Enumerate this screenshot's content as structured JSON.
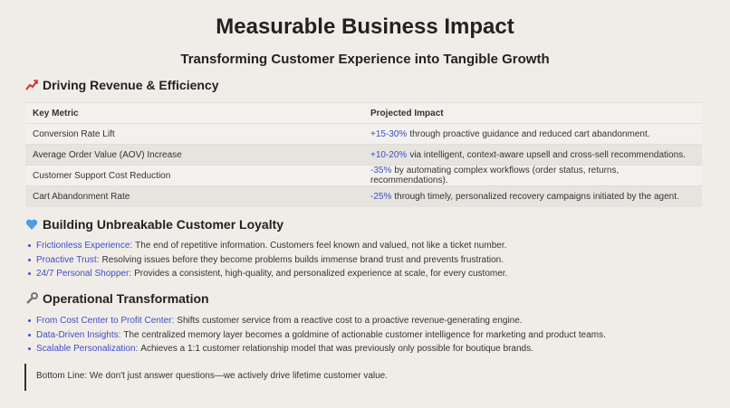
{
  "title": "Measurable Business Impact",
  "subtitle": "Transforming Customer Experience into Tangible Growth",
  "revenue": {
    "heading": "Driving Revenue & Efficiency",
    "table": {
      "headers": [
        "Key Metric",
        "Projected Impact"
      ],
      "rows": [
        {
          "metric": "Conversion Rate Lift",
          "highlight": "+15-30%",
          "text": "through proactive guidance and reduced cart abandonment."
        },
        {
          "metric": "Average Order Value (AOV) Increase",
          "highlight": "+10-20%",
          "text": "via intelligent, context-aware upsell and cross-sell recommendations."
        },
        {
          "metric": "Customer Support Cost Reduction",
          "highlight": "-35%",
          "text": "by automating complex workflows (order status, returns, recommendations)."
        },
        {
          "metric": "Cart Abandonment Rate",
          "highlight": "-25%",
          "text": "through timely, personalized recovery campaigns initiated by the agent."
        }
      ]
    }
  },
  "loyalty": {
    "heading": "Building Unbreakable Customer Loyalty",
    "items": [
      {
        "term": "Frictionless Experience:",
        "text": "The end of repetitive information. Customers feel known and valued, not like a ticket number."
      },
      {
        "term": "Proactive Trust:",
        "text": "Resolving issues before they become problems builds immense brand trust and prevents frustration."
      },
      {
        "term": "24/7 Personal Shopper:",
        "text": "Provides a consistent, high-quality, and personalized experience at scale, for every customer."
      }
    ]
  },
  "operations": {
    "heading": "Operational Transformation",
    "items": [
      {
        "term": "From Cost Center to Profit Center:",
        "text": "Shifts customer service from a reactive cost to a proactive revenue-generating engine."
      },
      {
        "term": "Data-Driven Insights:",
        "text": "The centralized memory layer becomes a goldmine of actionable customer intelligence for marketing and product teams."
      },
      {
        "term": "Scalable Personalization:",
        "text": "Achieves a 1:1 customer relationship model that was previously only possible for boutique brands."
      }
    ]
  },
  "bottom_line": "Bottom Line: We don't just answer questions—we actively drive lifetime customer value."
}
